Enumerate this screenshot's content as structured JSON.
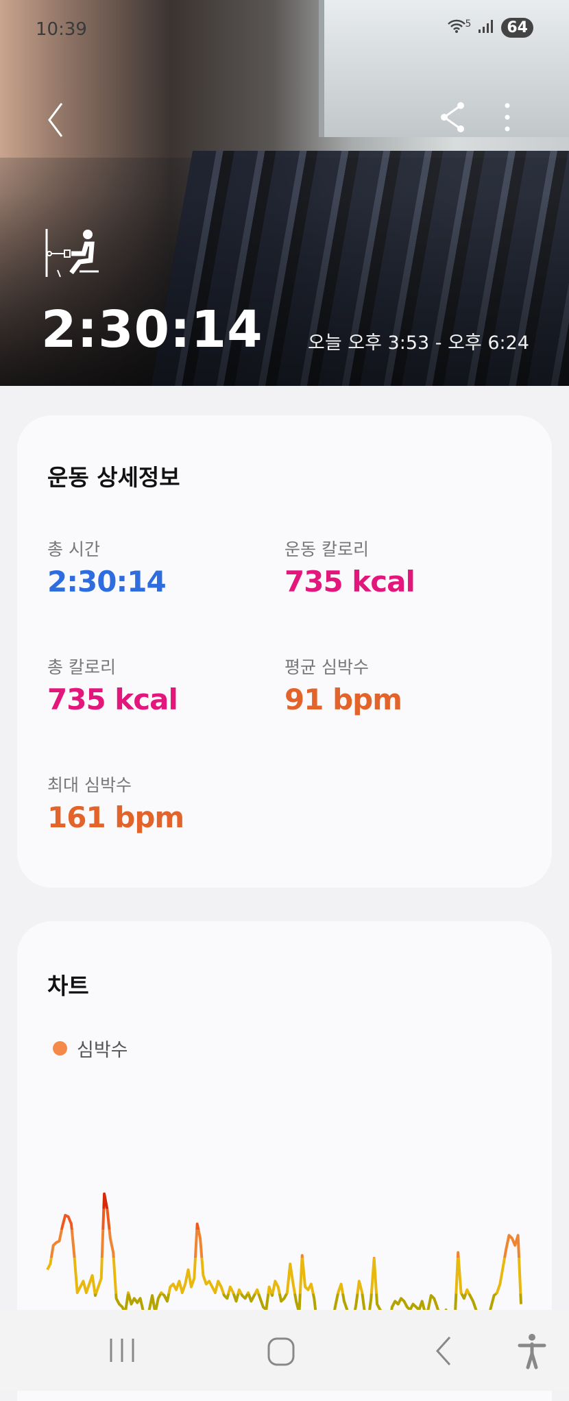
{
  "status_bar": {
    "time": "10:39",
    "network": "5",
    "battery": "64"
  },
  "header": {
    "icons": {
      "back": "chevron-left-icon",
      "share": "share-icon",
      "more": "more-vertical-icon",
      "exercise": "rowing-machine-icon"
    },
    "duration": "2:30:14",
    "time_range": "오늘 오후 3:53 - 오후 6:24"
  },
  "details": {
    "title": "운동 상세정보",
    "stats": [
      {
        "label": "총 시간",
        "value": "2:30:14",
        "color": "#2f6ddf"
      },
      {
        "label": "운동 칼로리",
        "value": "735 kcal",
        "color": "#e3167c"
      },
      {
        "label": "총 칼로리",
        "value": "735 kcal",
        "color": "#e3167c"
      },
      {
        "label": "평균 심박수",
        "value": "91 bpm",
        "color": "#e2642b"
      },
      {
        "label": "최대 심박수",
        "value": "161 bpm",
        "color": "#e2642b"
      }
    ]
  },
  "chart_section": {
    "title": "차트",
    "legend": {
      "label": "심박수",
      "color": "#f5894a"
    }
  },
  "chart_data": {
    "type": "line",
    "series": [
      {
        "name": "심박수",
        "values": [
          108,
          112,
          125,
          127,
          128,
          138,
          146,
          145,
          140,
          118,
          92,
          96,
          100,
          92,
          98,
          104,
          90,
          96,
          102,
          161,
          150,
          130,
          120,
          88,
          84,
          82,
          78,
          92,
          84,
          88,
          85,
          88,
          79,
          70,
          80,
          90,
          78,
          88,
          92,
          90,
          86,
          96,
          98,
          94,
          100,
          92,
          98,
          108,
          96,
          102,
          140,
          130,
          104,
          98,
          100,
          96,
          92,
          100,
          96,
          90,
          88,
          96,
          92,
          86,
          94,
          90,
          88,
          92,
          86,
          90,
          94,
          88,
          82,
          80,
          96,
          90,
          100,
          96,
          86,
          88,
          92,
          112,
          98,
          86,
          78,
          118,
          96,
          94,
          98,
          88,
          70,
          72,
          78,
          74,
          72,
          70,
          82,
          92,
          98,
          86,
          80,
          74,
          72,
          84,
          100,
          92,
          76,
          72,
          88,
          116,
          84,
          80,
          78,
          74,
          70,
          82,
          86,
          84,
          88,
          86,
          82,
          80,
          84,
          82,
          80,
          86,
          78,
          80,
          90,
          88,
          82,
          76,
          72,
          80,
          74,
          70,
          76,
          120,
          92,
          88,
          94,
          90,
          86,
          80,
          76,
          72,
          70,
          74,
          82,
          90,
          92,
          98,
          110,
          122,
          132,
          130,
          125,
          132,
          84
        ]
      }
    ],
    "max": 161,
    "average": 91,
    "zone_colors": [
      "#b5a300",
      "#e8b80f",
      "#ee8532",
      "#f0591e",
      "#d42a0a"
    ]
  },
  "nav": {
    "icons": [
      "recent-apps-icon",
      "home-icon",
      "back-icon",
      "accessibility-icon"
    ]
  }
}
